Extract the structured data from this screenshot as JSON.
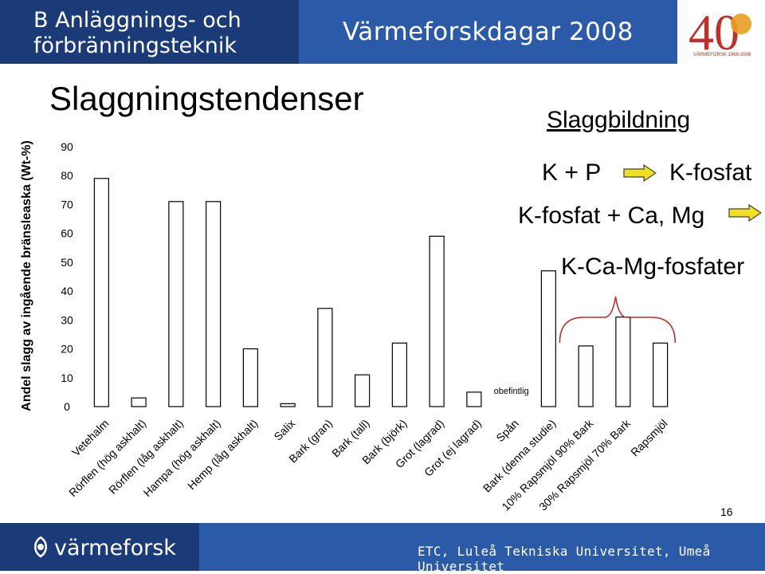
{
  "header": {
    "title_line1": "B Anläggnings- och",
    "title_line2": "förbränningsteknik",
    "event": "Värmeforskdagar 2008",
    "logo_text": "40",
    "logo_caption": "VÄRMEFORSK 1968-2008"
  },
  "slide": {
    "title": "Slaggningstendenser",
    "page_number": "16"
  },
  "annotation": {
    "title": "Slaggbildning",
    "eq1_left": "K + P",
    "eq1_right": "K-fosfat",
    "eq2": "K-fosfat + Ca, Mg",
    "eq3": "K-Ca-Mg-fosfater",
    "arrow_color": "#f0e020"
  },
  "footer": {
    "brand": "värmeforsk",
    "org": "ETC, Luleå Tekniska Universitet, Umeå Universitet"
  },
  "chart_data": {
    "type": "bar",
    "ylabel": "Andel slagg av ingående bränsleaska (Wt-%)",
    "ylim": [
      0,
      90
    ],
    "yticks": [
      "0",
      "10",
      "20",
      "30",
      "40",
      "50",
      "60",
      "70",
      "80",
      "90"
    ],
    "grid": false,
    "categories": [
      "Vetehalm",
      "Rörflen (hög askhalt)",
      "Rörflen (låg askhalt)",
      "Hampa (hög askhalt)",
      "Hemp (låg askhalt)",
      "Salix",
      "Bark (gran)",
      "Bark (tall)",
      "Bark (björk)",
      "Grot (lagrad)",
      "Grot (ej lagrad)",
      "Spån",
      "Bark (denna studie)",
      "10% Rapsmjöl 90% Bark",
      "30% Rapsmjöl 70% Bark",
      "Rapsmjöl"
    ],
    "values": [
      79,
      3,
      71,
      71,
      20,
      1,
      34,
      11,
      22,
      59,
      5,
      0,
      47,
      21,
      31,
      22
    ],
    "bar_labels": [
      "",
      "",
      "",
      "",
      "",
      "",
      "",
      "",
      "",
      "",
      "",
      "obefintlig",
      "",
      "",
      "",
      ""
    ],
    "bar_color": "#ffffff",
    "bar_stroke": "#000000",
    "bracket_color": "#c0302a"
  }
}
